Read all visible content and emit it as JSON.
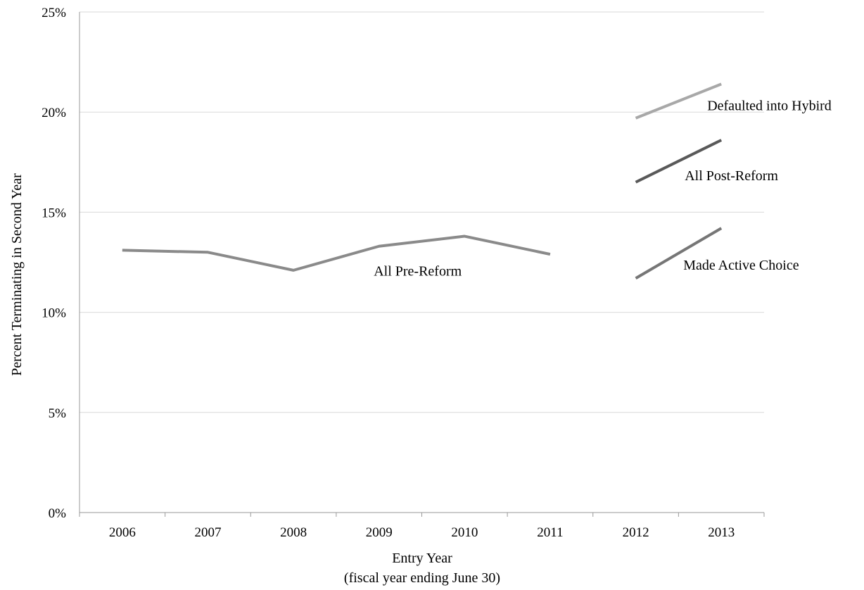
{
  "chart_data": {
    "type": "line",
    "x": [
      "2006",
      "2007",
      "2008",
      "2009",
      "2010",
      "2011",
      "2012",
      "2013"
    ],
    "xlabel": "Entry Year",
    "xlabel_sub": "(fiscal year ending June 30)",
    "ylabel": "Percent Terminating in Second Year",
    "ylim": [
      0,
      25
    ],
    "yticks": [
      0,
      5,
      10,
      15,
      20,
      25
    ],
    "ytick_labels": [
      "0%",
      "5%",
      "10%",
      "15%",
      "20%",
      "25%"
    ],
    "grid": true,
    "legend": "direct-labels",
    "series": [
      {
        "name": "All Pre-Reform",
        "x": [
          "2006",
          "2007",
          "2008",
          "2009",
          "2010",
          "2011"
        ],
        "values": [
          13.1,
          13.0,
          12.1,
          13.3,
          13.8,
          12.9
        ],
        "color": "#8a8a8a"
      },
      {
        "name": "Defaulted into Hybird",
        "x": [
          "2012",
          "2013"
        ],
        "values": [
          19.7,
          21.4
        ],
        "color": "#a8a8a8"
      },
      {
        "name": "All Post-Reform",
        "x": [
          "2012",
          "2013"
        ],
        "values": [
          16.5,
          18.6
        ],
        "color": "#595959"
      },
      {
        "name": "Made Active Choice",
        "x": [
          "2012",
          "2013"
        ],
        "values": [
          11.7,
          14.2
        ],
        "color": "#767676"
      }
    ]
  }
}
